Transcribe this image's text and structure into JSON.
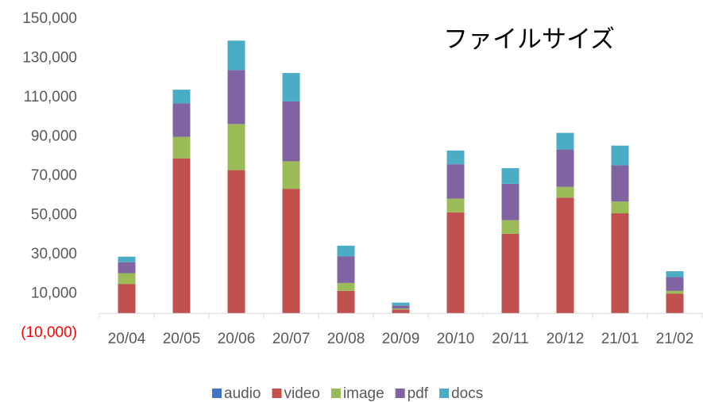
{
  "chart_data": {
    "type": "stacked_bar",
    "title": "ファイルサイズ",
    "categories": [
      "20/04",
      "20/05",
      "20/06",
      "20/07",
      "20/08",
      "20/09",
      "20/10",
      "20/11",
      "20/12",
      "21/01",
      "21/02"
    ],
    "series": [
      {
        "name": "audio",
        "color": "#4472c4",
        "values": [
          0,
          0,
          0,
          0,
          0,
          0,
          0,
          0,
          0,
          0,
          0
        ]
      },
      {
        "name": "video",
        "color": "#c0504d",
        "values": [
          15000,
          79000,
          73000,
          63500,
          11500,
          2000,
          51500,
          40500,
          59000,
          51000,
          10000
        ]
      },
      {
        "name": "image",
        "color": "#9bbb59",
        "values": [
          5500,
          11000,
          23500,
          14000,
          4000,
          500,
          7000,
          7000,
          5500,
          6000,
          1500
        ]
      },
      {
        "name": "pdf",
        "color": "#8064a2",
        "values": [
          5600,
          17000,
          27500,
          30500,
          13500,
          1500,
          17500,
          18500,
          19000,
          18500,
          7000
        ]
      },
      {
        "name": "docs",
        "color": "#4bacc6",
        "values": [
          2800,
          7000,
          15000,
          14500,
          5500,
          1500,
          7000,
          8000,
          8500,
          10000,
          3000
        ]
      }
    ],
    "ylim": [
      -10000,
      150000
    ],
    "yticks": [
      {
        "value": -10000,
        "label": "(10,000)"
      },
      {
        "value": 10000,
        "label": "10,000"
      },
      {
        "value": 30000,
        "label": "30,000"
      },
      {
        "value": 50000,
        "label": "50,000"
      },
      {
        "value": 70000,
        "label": "70,000"
      },
      {
        "value": 90000,
        "label": "90,000"
      },
      {
        "value": 110000,
        "label": "110,000"
      },
      {
        "value": 130000,
        "label": "130,000"
      },
      {
        "value": 150000,
        "label": "150,000"
      }
    ],
    "negative_tick_color": "#ff0000",
    "legend": "bottom"
  }
}
